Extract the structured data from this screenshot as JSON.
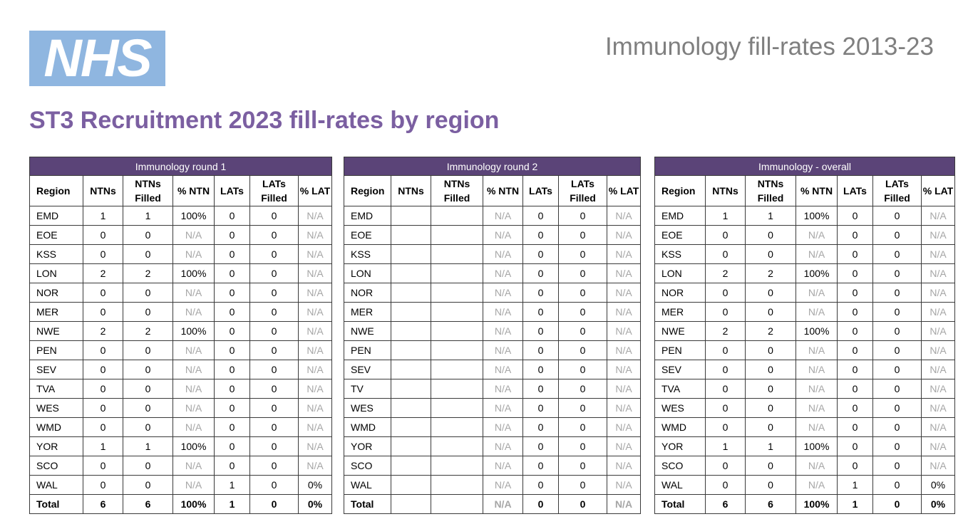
{
  "header": {
    "logo_text": "NHS",
    "logo_color": "#8fb6e0",
    "deck_title": "Immunology fill-rates 2013-23",
    "page_title": "ST3 Recruitment 2023 fill-rates by region",
    "title_color": "#7b5fa1",
    "table_header_color": "#5b4478"
  },
  "column_headers": [
    "Region",
    "NTNs",
    "NTNs Filled",
    "% NTN",
    "LATs",
    "LATs Filled",
    "% LAT"
  ],
  "tables": [
    {
      "title": "Immunology round 1",
      "rows": [
        [
          "EMD",
          "1",
          "1",
          "100%",
          "0",
          "0",
          "N/A"
        ],
        [
          "EOE",
          "0",
          "0",
          "N/A",
          "0",
          "0",
          "N/A"
        ],
        [
          "KSS",
          "0",
          "0",
          "N/A",
          "0",
          "0",
          "N/A"
        ],
        [
          "LON",
          "2",
          "2",
          "100%",
          "0",
          "0",
          "N/A"
        ],
        [
          "NOR",
          "0",
          "0",
          "N/A",
          "0",
          "0",
          "N/A"
        ],
        [
          "MER",
          "0",
          "0",
          "N/A",
          "0",
          "0",
          "N/A"
        ],
        [
          "NWE",
          "2",
          "2",
          "100%",
          "0",
          "0",
          "N/A"
        ],
        [
          "PEN",
          "0",
          "0",
          "N/A",
          "0",
          "0",
          "N/A"
        ],
        [
          "SEV",
          "0",
          "0",
          "N/A",
          "0",
          "0",
          "N/A"
        ],
        [
          "TVA",
          "0",
          "0",
          "N/A",
          "0",
          "0",
          "N/A"
        ],
        [
          "WES",
          "0",
          "0",
          "N/A",
          "0",
          "0",
          "N/A"
        ],
        [
          "WMD",
          "0",
          "0",
          "N/A",
          "0",
          "0",
          "N/A"
        ],
        [
          "YOR",
          "1",
          "1",
          "100%",
          "0",
          "0",
          "N/A"
        ],
        [
          "SCO",
          "0",
          "0",
          "N/A",
          "0",
          "0",
          "N/A"
        ],
        [
          "WAL",
          "0",
          "0",
          "N/A",
          "1",
          "0",
          "0%"
        ]
      ],
      "total": [
        "Total",
        "6",
        "6",
        "100%",
        "1",
        "0",
        "0%"
      ]
    },
    {
      "title": "Immunology round 2",
      "rows": [
        [
          "EMD",
          "",
          "",
          "N/A",
          "0",
          "0",
          "N/A"
        ],
        [
          "EOE",
          "",
          "",
          "N/A",
          "0",
          "0",
          "N/A"
        ],
        [
          "KSS",
          "",
          "",
          "N/A",
          "0",
          "0",
          "N/A"
        ],
        [
          "LON",
          "",
          "",
          "N/A",
          "0",
          "0",
          "N/A"
        ],
        [
          "NOR",
          "",
          "",
          "N/A",
          "0",
          "0",
          "N/A"
        ],
        [
          "MER",
          "",
          "",
          "N/A",
          "0",
          "0",
          "N/A"
        ],
        [
          "NWE",
          "",
          "",
          "N/A",
          "0",
          "0",
          "N/A"
        ],
        [
          "PEN",
          "",
          "",
          "N/A",
          "0",
          "0",
          "N/A"
        ],
        [
          "SEV",
          "",
          "",
          "N/A",
          "0",
          "0",
          "N/A"
        ],
        [
          "TV",
          "",
          "",
          "N/A",
          "0",
          "0",
          "N/A"
        ],
        [
          "WES",
          "",
          "",
          "N/A",
          "0",
          "0",
          "N/A"
        ],
        [
          "WMD",
          "",
          "",
          "N/A",
          "0",
          "0",
          "N/A"
        ],
        [
          "YOR",
          "",
          "",
          "N/A",
          "0",
          "0",
          "N/A"
        ],
        [
          "SCO",
          "",
          "",
          "N/A",
          "0",
          "0",
          "N/A"
        ],
        [
          "WAL",
          "",
          "",
          "N/A",
          "0",
          "0",
          "N/A"
        ]
      ],
      "total": [
        "Total",
        "",
        "",
        "N/A",
        "0",
        "0",
        "N/A"
      ]
    },
    {
      "title": "Immunology - overall",
      "rows": [
        [
          "EMD",
          "1",
          "1",
          "100%",
          "0",
          "0",
          "N/A"
        ],
        [
          "EOE",
          "0",
          "0",
          "N/A",
          "0",
          "0",
          "N/A"
        ],
        [
          "KSS",
          "0",
          "0",
          "N/A",
          "0",
          "0",
          "N/A"
        ],
        [
          "LON",
          "2",
          "2",
          "100%",
          "0",
          "0",
          "N/A"
        ],
        [
          "NOR",
          "0",
          "0",
          "N/A",
          "0",
          "0",
          "N/A"
        ],
        [
          "MER",
          "0",
          "0",
          "N/A",
          "0",
          "0",
          "N/A"
        ],
        [
          "NWE",
          "2",
          "2",
          "100%",
          "0",
          "0",
          "N/A"
        ],
        [
          "PEN",
          "0",
          "0",
          "N/A",
          "0",
          "0",
          "N/A"
        ],
        [
          "SEV",
          "0",
          "0",
          "N/A",
          "0",
          "0",
          "N/A"
        ],
        [
          "TVA",
          "0",
          "0",
          "N/A",
          "0",
          "0",
          "N/A"
        ],
        [
          "WES",
          "0",
          "0",
          "N/A",
          "0",
          "0",
          "N/A"
        ],
        [
          "WMD",
          "0",
          "0",
          "N/A",
          "0",
          "0",
          "N/A"
        ],
        [
          "YOR",
          "1",
          "1",
          "100%",
          "0",
          "0",
          "N/A"
        ],
        [
          "SCO",
          "0",
          "0",
          "N/A",
          "0",
          "0",
          "N/A"
        ],
        [
          "WAL",
          "0",
          "0",
          "N/A",
          "1",
          "0",
          "0%"
        ]
      ],
      "total": [
        "Total",
        "6",
        "6",
        "100%",
        "1",
        "0",
        "0%"
      ]
    }
  ]
}
